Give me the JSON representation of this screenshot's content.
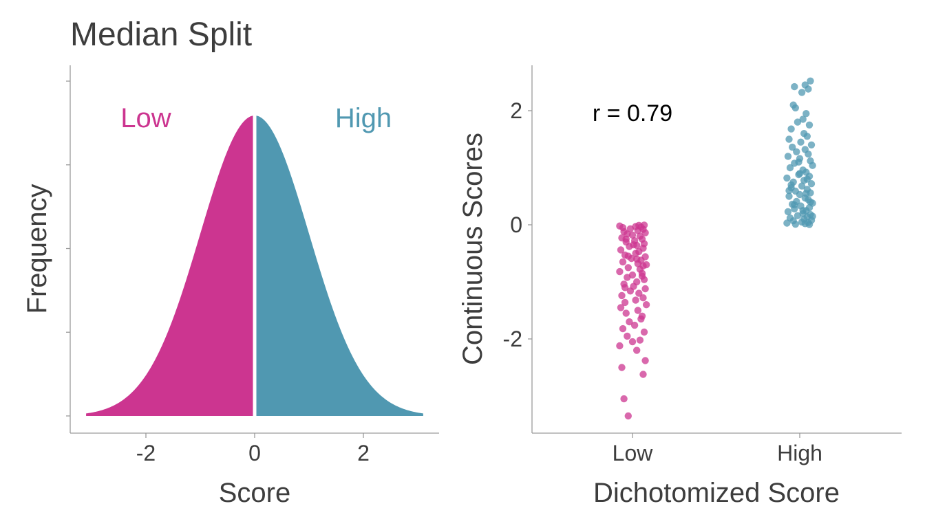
{
  "page_title": "Median Split",
  "colors": {
    "low": "#cc3590",
    "high": "#5098b1",
    "axis": "#9a9a9a",
    "text": "#3d3d3d",
    "annotation": "#000000"
  },
  "chart_data": [
    {
      "type": "area",
      "title": "",
      "xlabel": "Score",
      "ylabel": "Frequency",
      "xlim": [
        -3.1,
        3.1
      ],
      "xticks": [
        "-2",
        "0",
        "2"
      ],
      "yticks_labeled": false,
      "ytick_count": 5,
      "series": [
        {
          "name": "Low",
          "x_range": [
            -3.1,
            0
          ],
          "distribution": "standard-normal-density",
          "color": "#cc3590"
        },
        {
          "name": "High",
          "x_range": [
            0,
            3.1
          ],
          "distribution": "standard-normal-density",
          "color": "#5098b1"
        }
      ],
      "labels": {
        "low": "Low",
        "high": "High"
      },
      "grid": false
    },
    {
      "type": "scatter",
      "xlabel": "Dichotomized Score",
      "ylabel": "Continuous Scores",
      "categories": [
        "Low",
        "High"
      ],
      "ylim": [
        -3.5,
        2.8
      ],
      "yticks": [
        "-2",
        "0",
        "2"
      ],
      "annotation": "r = 0.79",
      "grid": false,
      "series": [
        {
          "name": "Low",
          "color": "#cc3590",
          "jitter": [
            -0.04,
            -0.08,
            0.1,
            -0.1,
            0.12,
            0.04,
            -0.12,
            0.0,
            0.07,
            -0.05,
            0.11,
            -0.09,
            0.02,
            -0.03,
            0.08,
            0.09,
            -0.06,
            0.05,
            -0.11,
            0.13,
            -0.07,
            0.03,
            0.1,
            -0.1,
            0.06,
            -0.02,
            0.12,
            0.01,
            -0.08,
            0.04,
            0.11,
            -0.05,
            0.0,
            0.09,
            -0.12,
            0.07,
            -0.04,
            0.1,
            0.05,
            -0.09,
            0.08,
            -0.01,
            0.12,
            -0.07,
            0.03,
            0.06,
            -0.11,
            0.1,
            -0.03,
            0.04,
            0.11,
            -0.06,
            0.02,
            0.09,
            -0.1,
            0.07,
            0.0,
            -0.05,
            0.12,
            -0.08,
            0.05,
            0.1,
            -0.02,
            -0.09,
            0.08,
            0.03,
            -0.12,
            0.06,
            0.11,
            -0.04,
            0.01,
            0.09,
            -0.07,
            0.13,
            -0.06,
            0.04
          ],
          "values": [
            -3.35,
            -3.05,
            -2.62,
            -2.5,
            -2.38,
            -2.2,
            -2.12,
            -2.05,
            -2.02,
            -1.95,
            -1.88,
            -1.82,
            -1.76,
            -1.7,
            -1.65,
            -1.6,
            -1.55,
            -1.5,
            -1.45,
            -1.4,
            -1.36,
            -1.32,
            -1.28,
            -1.24,
            -1.2,
            -1.16,
            -1.12,
            -1.08,
            -1.04,
            -1.0,
            -0.96,
            -0.92,
            -0.88,
            -0.85,
            -0.82,
            -0.78,
            -0.75,
            -0.72,
            -0.68,
            -0.65,
            -0.62,
            -0.59,
            -0.56,
            -0.53,
            -0.5,
            -0.47,
            -0.44,
            -0.41,
            -0.38,
            -0.36,
            -0.33,
            -0.3,
            -0.28,
            -0.25,
            -0.23,
            -0.2,
            -0.18,
            -0.16,
            -0.14,
            -0.12,
            -0.1,
            -0.08,
            -0.07,
            -0.05,
            -0.04,
            -0.03,
            -0.02,
            -0.01,
            -0.005,
            -0.55,
            -0.35,
            -0.9,
            -1.1,
            -0.7,
            -0.25,
            -0.6
          ]
        },
        {
          "name": "High",
          "color": "#5098b1",
          "jitter": [
            0.1,
            0.05,
            -0.05,
            0.08,
            0.02,
            -0.06,
            -0.04,
            0.06,
            0.03,
            -0.02,
            0.09,
            -0.08,
            0.04,
            0.07,
            -0.1,
            0.01,
            0.11,
            -0.07,
            0.05,
            -0.03,
            0.08,
            -0.11,
            0.0,
            0.1,
            -0.05,
            0.12,
            -0.09,
            0.03,
            0.06,
            -0.01,
            0.09,
            -0.12,
            0.04,
            -0.06,
            0.11,
            0.02,
            -0.08,
            0.07,
            -0.04,
            0.1,
            0.0,
            -0.1,
            0.05,
            0.08,
            -0.03,
            0.12,
            -0.07,
            0.01,
            0.09,
            -0.05,
            0.06,
            -0.11,
            0.03,
            0.1,
            -0.02,
            0.07,
            -0.09,
            0.04,
            0.11,
            -0.06,
            0.02,
            0.08,
            -0.12,
            0.05,
            -0.04,
            0.09,
            0.0,
            -0.08,
            0.06,
            0.1,
            -0.01,
            0.03,
            -0.1,
            0.07,
            -0.05,
            0.12
          ],
          "values": [
            2.52,
            2.45,
            2.42,
            2.38,
            2.32,
            2.1,
            2.05,
            1.95,
            1.85,
            1.8,
            1.75,
            1.68,
            1.6,
            1.55,
            1.5,
            1.45,
            1.4,
            1.36,
            1.32,
            1.28,
            1.24,
            1.2,
            1.16,
            1.12,
            1.08,
            1.04,
            1.0,
            0.96,
            0.92,
            0.88,
            0.85,
            0.82,
            0.78,
            0.75,
            0.72,
            0.68,
            0.65,
            0.62,
            0.59,
            0.56,
            0.53,
            0.5,
            0.47,
            0.44,
            0.41,
            0.38,
            0.36,
            0.33,
            0.3,
            0.28,
            0.25,
            0.23,
            0.2,
            0.18,
            0.16,
            0.14,
            0.12,
            0.1,
            0.08,
            0.07,
            0.05,
            0.04,
            0.03,
            0.02,
            0.01,
            0.005,
            0.9,
            0.7,
            0.55,
            0.4,
            1.1,
            0.25,
            0.6,
            0.8,
            0.35,
            0.15
          ]
        }
      ]
    }
  ]
}
